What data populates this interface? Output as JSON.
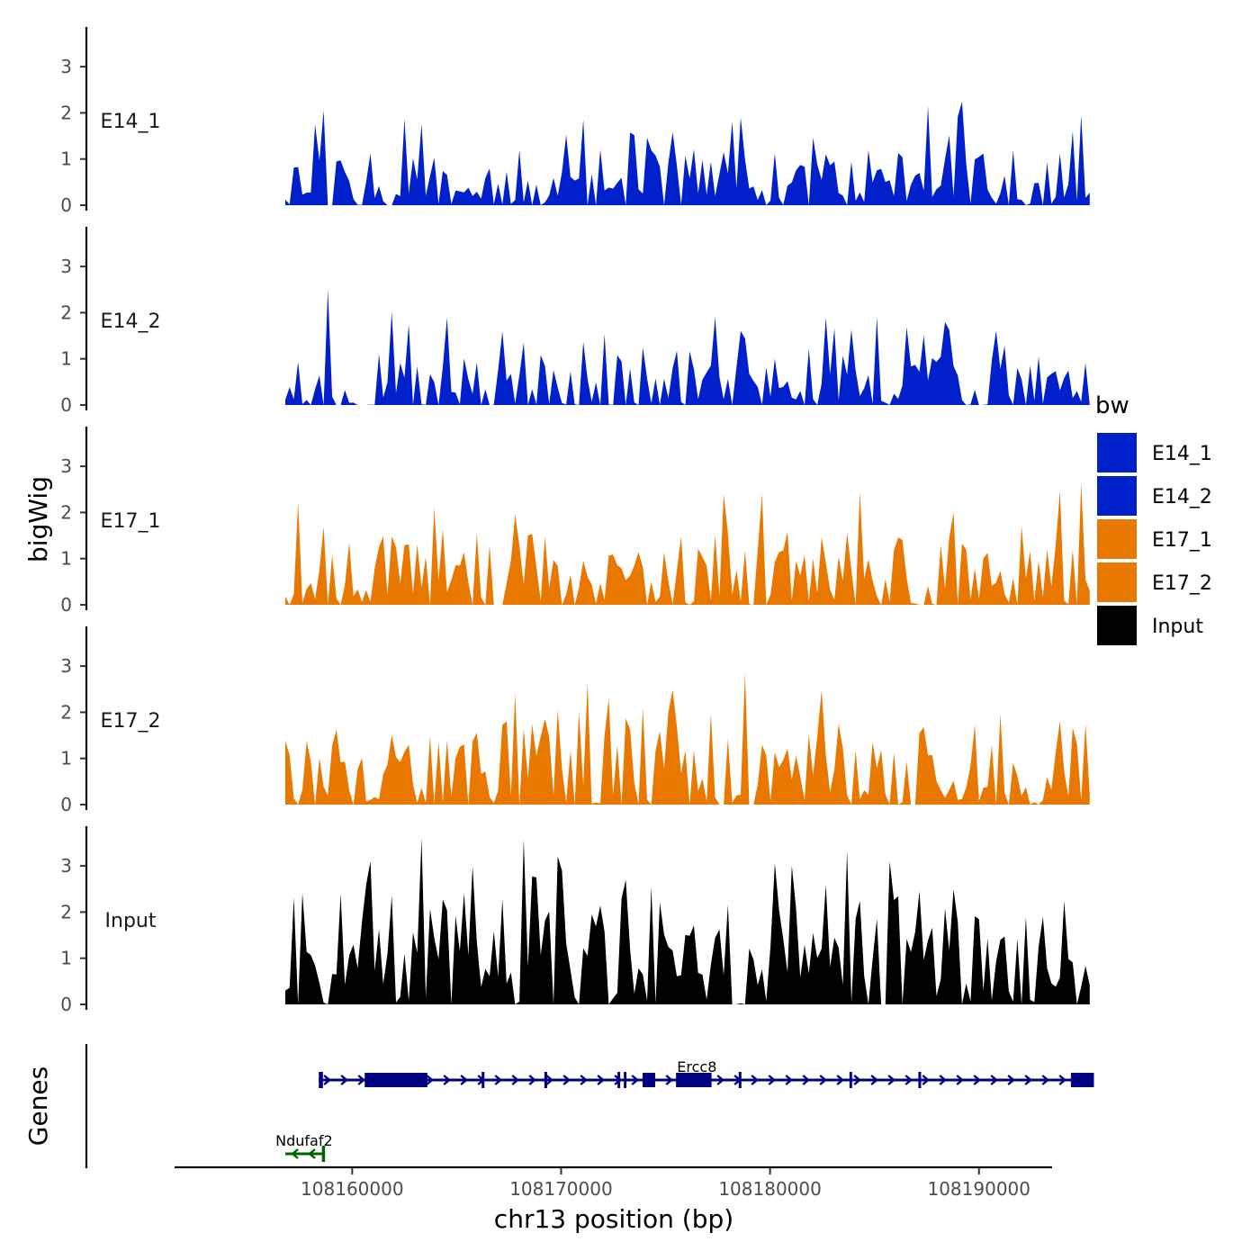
{
  "chart_data": {
    "type": "area",
    "chromosome": "chr13",
    "xlabel": "chr13 position (bp)",
    "ylabel": "bigWig",
    "genes_label": "Genes",
    "xlim": [
      108151500,
      108193500
    ],
    "x_ticks": [
      {
        "value": 108160000,
        "label": "108160000"
      },
      {
        "value": 108170000,
        "label": "108170000"
      },
      {
        "value": 108180000,
        "label": "108180000"
      },
      {
        "value": 108190000,
        "label": "108190000"
      }
    ],
    "ylim": [
      0,
      3.8
    ],
    "y_ticks": [
      {
        "value": 0,
        "label": "0"
      },
      {
        "value": 1,
        "label": "1"
      },
      {
        "value": 2,
        "label": "2"
      },
      {
        "value": 3,
        "label": "3"
      }
    ],
    "data_range": [
      108156800,
      108195300
    ],
    "n_points": 190,
    "tracks": [
      {
        "name": "E14_1",
        "color": "#0020CC",
        "seed": 11,
        "mean": 0.55,
        "peaks": [
          {
            "x": 108158600,
            "y": 2.05
          },
          {
            "x": 108158200,
            "y": 1.75
          },
          {
            "x": 108187500,
            "y": 2.15
          },
          {
            "x": 108194800,
            "y": 1.95
          },
          {
            "x": 108194500,
            "y": 1.6
          }
        ]
      },
      {
        "name": "E14_2",
        "color": "#0020CC",
        "seed": 23,
        "mean": 0.5,
        "peaks": [
          {
            "x": 108158900,
            "y": 2.5
          },
          {
            "x": 108162800,
            "y": 1.75
          },
          {
            "x": 108168200,
            "y": 1.35
          },
          {
            "x": 108178600,
            "y": 1.6
          },
          {
            "x": 108182700,
            "y": 1.9
          },
          {
            "x": 108188400,
            "y": 1.8
          }
        ]
      },
      {
        "name": "E17_1",
        "color": "#E87800",
        "seed": 37,
        "mean": 0.75,
        "peaks": [
          {
            "x": 108164000,
            "y": 2.1
          },
          {
            "x": 108179600,
            "y": 2.4
          },
          {
            "x": 108184300,
            "y": 2.45
          },
          {
            "x": 108188800,
            "y": 2.0
          }
        ]
      },
      {
        "name": "E17_2",
        "color": "#E87800",
        "seed": 53,
        "mean": 0.85,
        "peaks": [
          {
            "x": 108171300,
            "y": 2.65
          },
          {
            "x": 108169800,
            "y": 2.05
          },
          {
            "x": 108178700,
            "y": 2.85
          },
          {
            "x": 108175200,
            "y": 2.0
          },
          {
            "x": 108174000,
            "y": 2.1
          },
          {
            "x": 108195000,
            "y": 1.75
          }
        ]
      },
      {
        "name": "Input",
        "color": "#000000",
        "seed": 71,
        "mean": 1.15,
        "peaks": [
          {
            "x": 108163400,
            "y": 3.6
          },
          {
            "x": 108160900,
            "y": 3.1
          },
          {
            "x": 108185800,
            "y": 3.1
          },
          {
            "x": 108173000,
            "y": 2.7
          },
          {
            "x": 108182700,
            "y": 2.6
          },
          {
            "x": 108168900,
            "y": 2.75
          },
          {
            "x": 108170000,
            "y": 2.9
          }
        ]
      }
    ],
    "legend": {
      "title": "bw",
      "position": "right",
      "entries": [
        {
          "label": "E14_1",
          "color": "#0020CC"
        },
        {
          "label": "E14_2",
          "color": "#0020CC"
        },
        {
          "label": "E17_1",
          "color": "#E87800"
        },
        {
          "label": "E17_2",
          "color": "#E87800"
        },
        {
          "label": "Input",
          "color": "#000000"
        }
      ]
    },
    "genes": [
      {
        "name": "Ercc8",
        "strand": "+",
        "color": "#000080",
        "start": 108158400,
        "end": 108195500,
        "label_x": 108176500,
        "exons": [
          {
            "start": 108158400,
            "end": 108158600,
            "thick": false
          },
          {
            "start": 108160600,
            "end": 108163600,
            "thick": true
          },
          {
            "start": 108166200,
            "end": 108166300,
            "thick": false
          },
          {
            "start": 108169200,
            "end": 108169300,
            "thick": false
          },
          {
            "start": 108172700,
            "end": 108172800,
            "thick": false
          },
          {
            "start": 108173000,
            "end": 108173100,
            "thick": false
          },
          {
            "start": 108173900,
            "end": 108174500,
            "thick": true
          },
          {
            "start": 108175500,
            "end": 108177200,
            "thick": true
          },
          {
            "start": 108178500,
            "end": 108178600,
            "thick": false
          },
          {
            "start": 108183800,
            "end": 108183900,
            "thick": false
          },
          {
            "start": 108187100,
            "end": 108187200,
            "thick": false
          },
          {
            "start": 108194400,
            "end": 108195500,
            "thick": true
          }
        ]
      },
      {
        "name": "Ndufaf2",
        "strand": "-",
        "color": "#006400",
        "start": 108156800,
        "end": 108158700,
        "label_x": 108157700,
        "exons": [
          {
            "start": 108158550,
            "end": 108158700,
            "thick": false
          }
        ]
      }
    ]
  }
}
